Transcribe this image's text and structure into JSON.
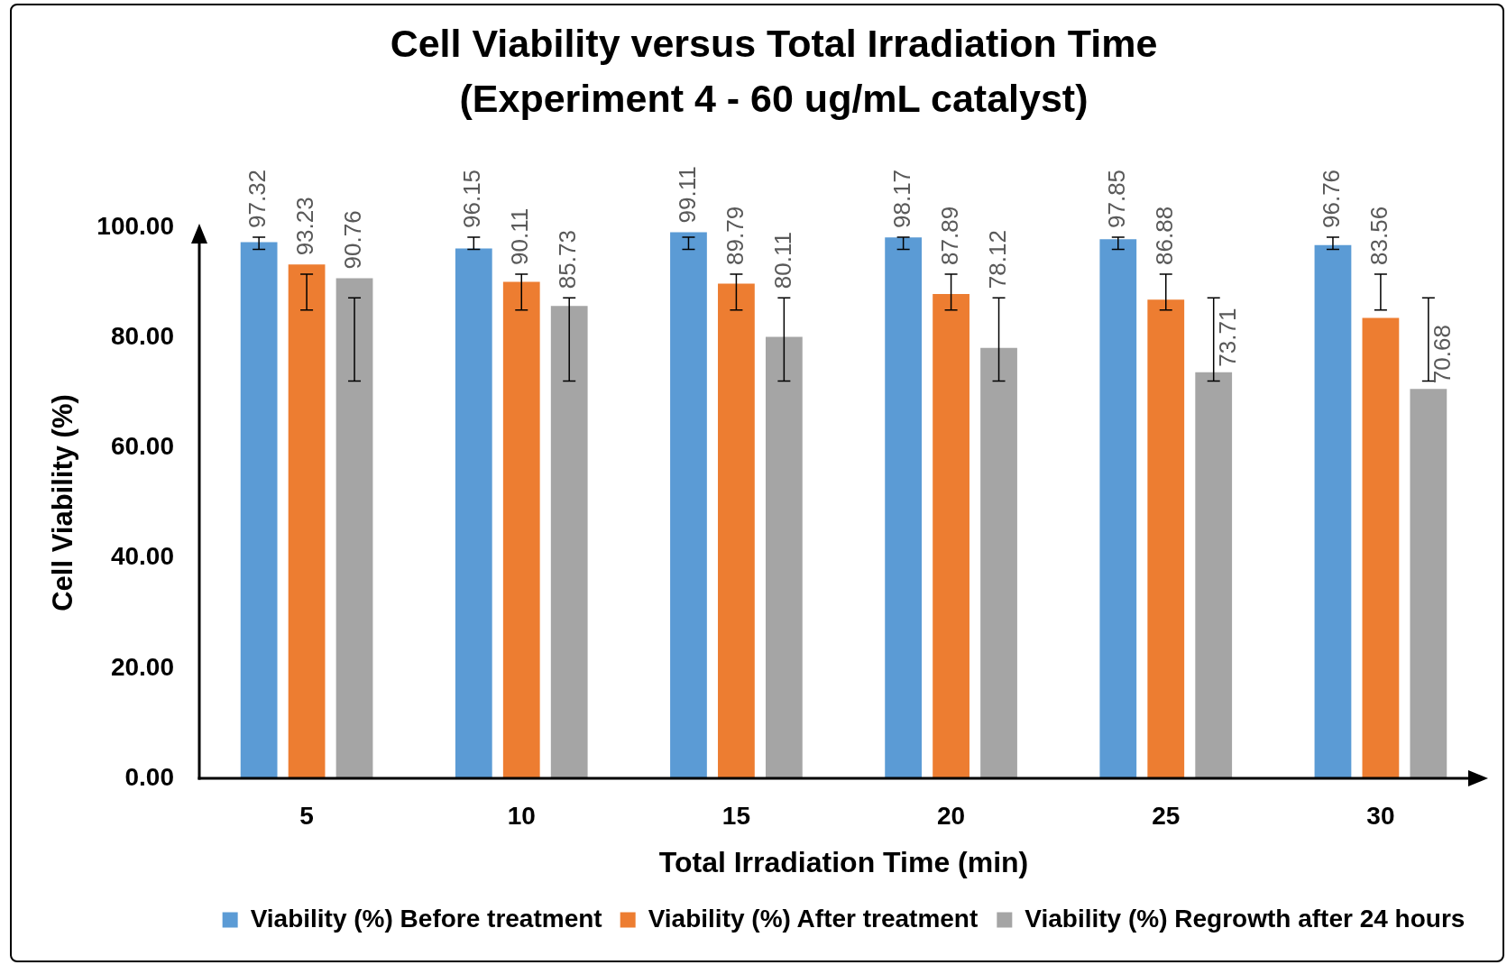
{
  "chart_data": {
    "type": "bar",
    "title": "Cell Viability versus Total Irradiation Time",
    "subtitle": "(Experiment 4 - 60 ug/mL catalyst)",
    "xlabel": "Total Irradiation Time (min)",
    "ylabel": "Cell Viability (%)",
    "categories": [
      "5",
      "10",
      "15",
      "20",
      "25",
      "30"
    ],
    "series": [
      {
        "name": "Viability (%) Before treatment",
        "color": "#5b9bd5",
        "values": [
          97.32,
          96.15,
          99.11,
          98.17,
          97.85,
          96.76
        ],
        "errors": [
          [
            96.0,
            98.2
          ],
          [
            96.0,
            98.2
          ],
          [
            96.0,
            98.2
          ],
          [
            96.0,
            98.2
          ],
          [
            96.0,
            98.2
          ],
          [
            96.0,
            98.2
          ]
        ]
      },
      {
        "name": "Viability (%) After treatment",
        "color": "#ed7d31",
        "values": [
          93.23,
          90.11,
          89.79,
          87.89,
          86.88,
          83.56
        ],
        "errors": [
          [
            85.0,
            91.5
          ],
          [
            85.0,
            91.5
          ],
          [
            85.0,
            91.5
          ],
          [
            85.0,
            91.5
          ],
          [
            85.0,
            91.5
          ],
          [
            85.0,
            91.5
          ]
        ]
      },
      {
        "name": "Viability (%) Regrowth after 24 hours",
        "color": "#a5a5a5",
        "values": [
          90.76,
          85.73,
          80.11,
          78.12,
          73.71,
          70.68
        ],
        "errors": [
          [
            72.1,
            87.2
          ],
          [
            72.1,
            87.2
          ],
          [
            72.1,
            87.2
          ],
          [
            72.1,
            87.2
          ],
          [
            72.1,
            87.2
          ],
          [
            72.1,
            87.2
          ]
        ]
      }
    ],
    "ylim": [
      0,
      100
    ],
    "yticks": [
      {
        "value": 0,
        "label": "0.00"
      },
      {
        "value": 20,
        "label": "20.00"
      },
      {
        "value": 40,
        "label": "40.00"
      },
      {
        "value": 60,
        "label": "60.00"
      },
      {
        "value": 80,
        "label": "80.00"
      },
      {
        "value": 100,
        "label": "100.00"
      }
    ],
    "data_labels": true,
    "legend": "bottom",
    "grid": false
  }
}
